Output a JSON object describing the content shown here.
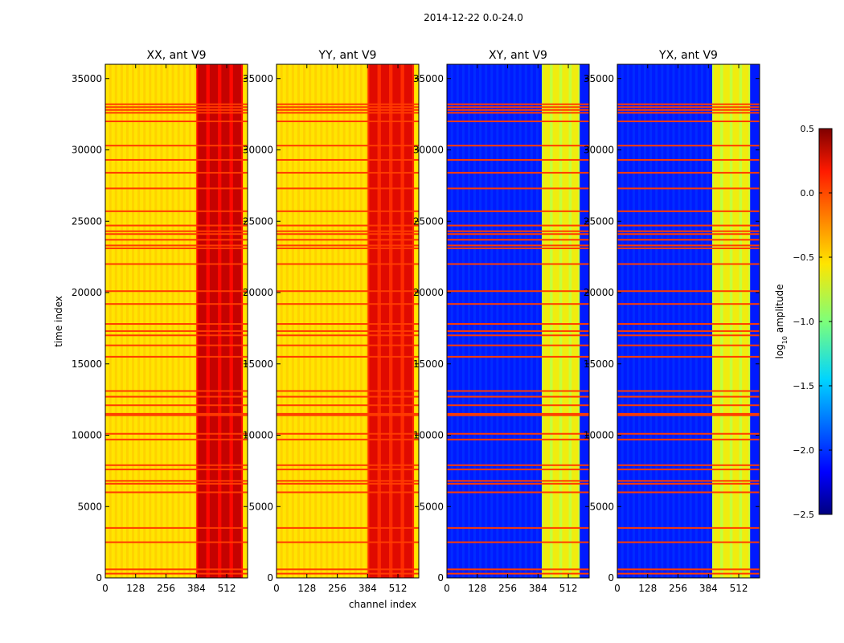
{
  "chart_data": {
    "type": "heatmap",
    "suptitle": "2014-12-22 0.0-24.0",
    "xlabel": "channel index",
    "ylabel": "time index",
    "xlim": [
      0,
      600
    ],
    "ylim": [
      0,
      36000
    ],
    "x_ticks": [
      0,
      128,
      256,
      384,
      512
    ],
    "y_ticks": [
      0,
      5000,
      10000,
      15000,
      20000,
      25000,
      30000,
      35000
    ],
    "panels": [
      {
        "title": "XX, ant V9",
        "base_log_amp": -0.55,
        "band_log_amp": 0.1,
        "band_channels": [
          384,
          580
        ]
      },
      {
        "title": "YY, ant V9",
        "base_log_amp": -0.55,
        "band_log_amp": 0.0,
        "band_channels": [
          384,
          580
        ]
      },
      {
        "title": "XY, ant V9",
        "base_log_amp": -2.05,
        "band_log_amp": -0.8,
        "band_channels": [
          400,
          560
        ]
      },
      {
        "title": "YX, ant V9",
        "base_log_amp": -2.05,
        "band_log_amp": -0.8,
        "band_channels": [
          400,
          560
        ]
      }
    ],
    "flagged_time_rows": [
      300,
      600,
      2500,
      3500,
      6000,
      6600,
      6800,
      7600,
      7900,
      9700,
      10100,
      11400,
      11500,
      12100,
      12700,
      13100,
      15500,
      16300,
      17000,
      17300,
      17800,
      19200,
      20100,
      22000,
      23100,
      23300,
      23700,
      24100,
      24300,
      24700,
      25700,
      27300,
      28400,
      29300,
      30300,
      32000,
      32600,
      32800,
      33000,
      33200
    ],
    "colorbar": {
      "label": "log10 amplitude",
      "range": [
        -2.5,
        0.5
      ],
      "ticks": [
        "0.5",
        "0.0",
        "−0.5",
        "−1.0",
        "−1.5",
        "−2.0",
        "−2.5"
      ],
      "colormap": "jet"
    }
  }
}
